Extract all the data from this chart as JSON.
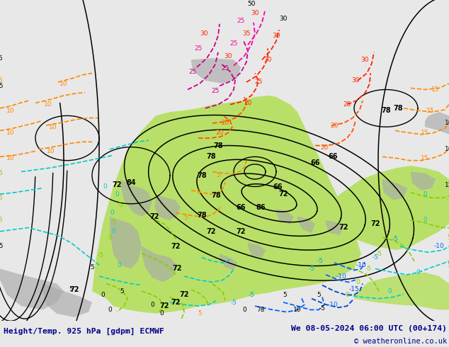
{
  "title_left": "Height/Temp. 925 hPa [gdpm] ECMWF",
  "title_right": "We 08-05-2024 06:00 UTC (00+174)",
  "copyright": "© weatheronline.co.uk",
  "bg_color": "#e8e8e8",
  "land_bg": "#e8e8e8",
  "green_color": "#b8e068",
  "gray_color": "#aaaaaa",
  "bottom_bar_color": "#d8d8d8",
  "title_color": "#00008B",
  "figsize": [
    6.34,
    4.9
  ],
  "dpi": 100
}
